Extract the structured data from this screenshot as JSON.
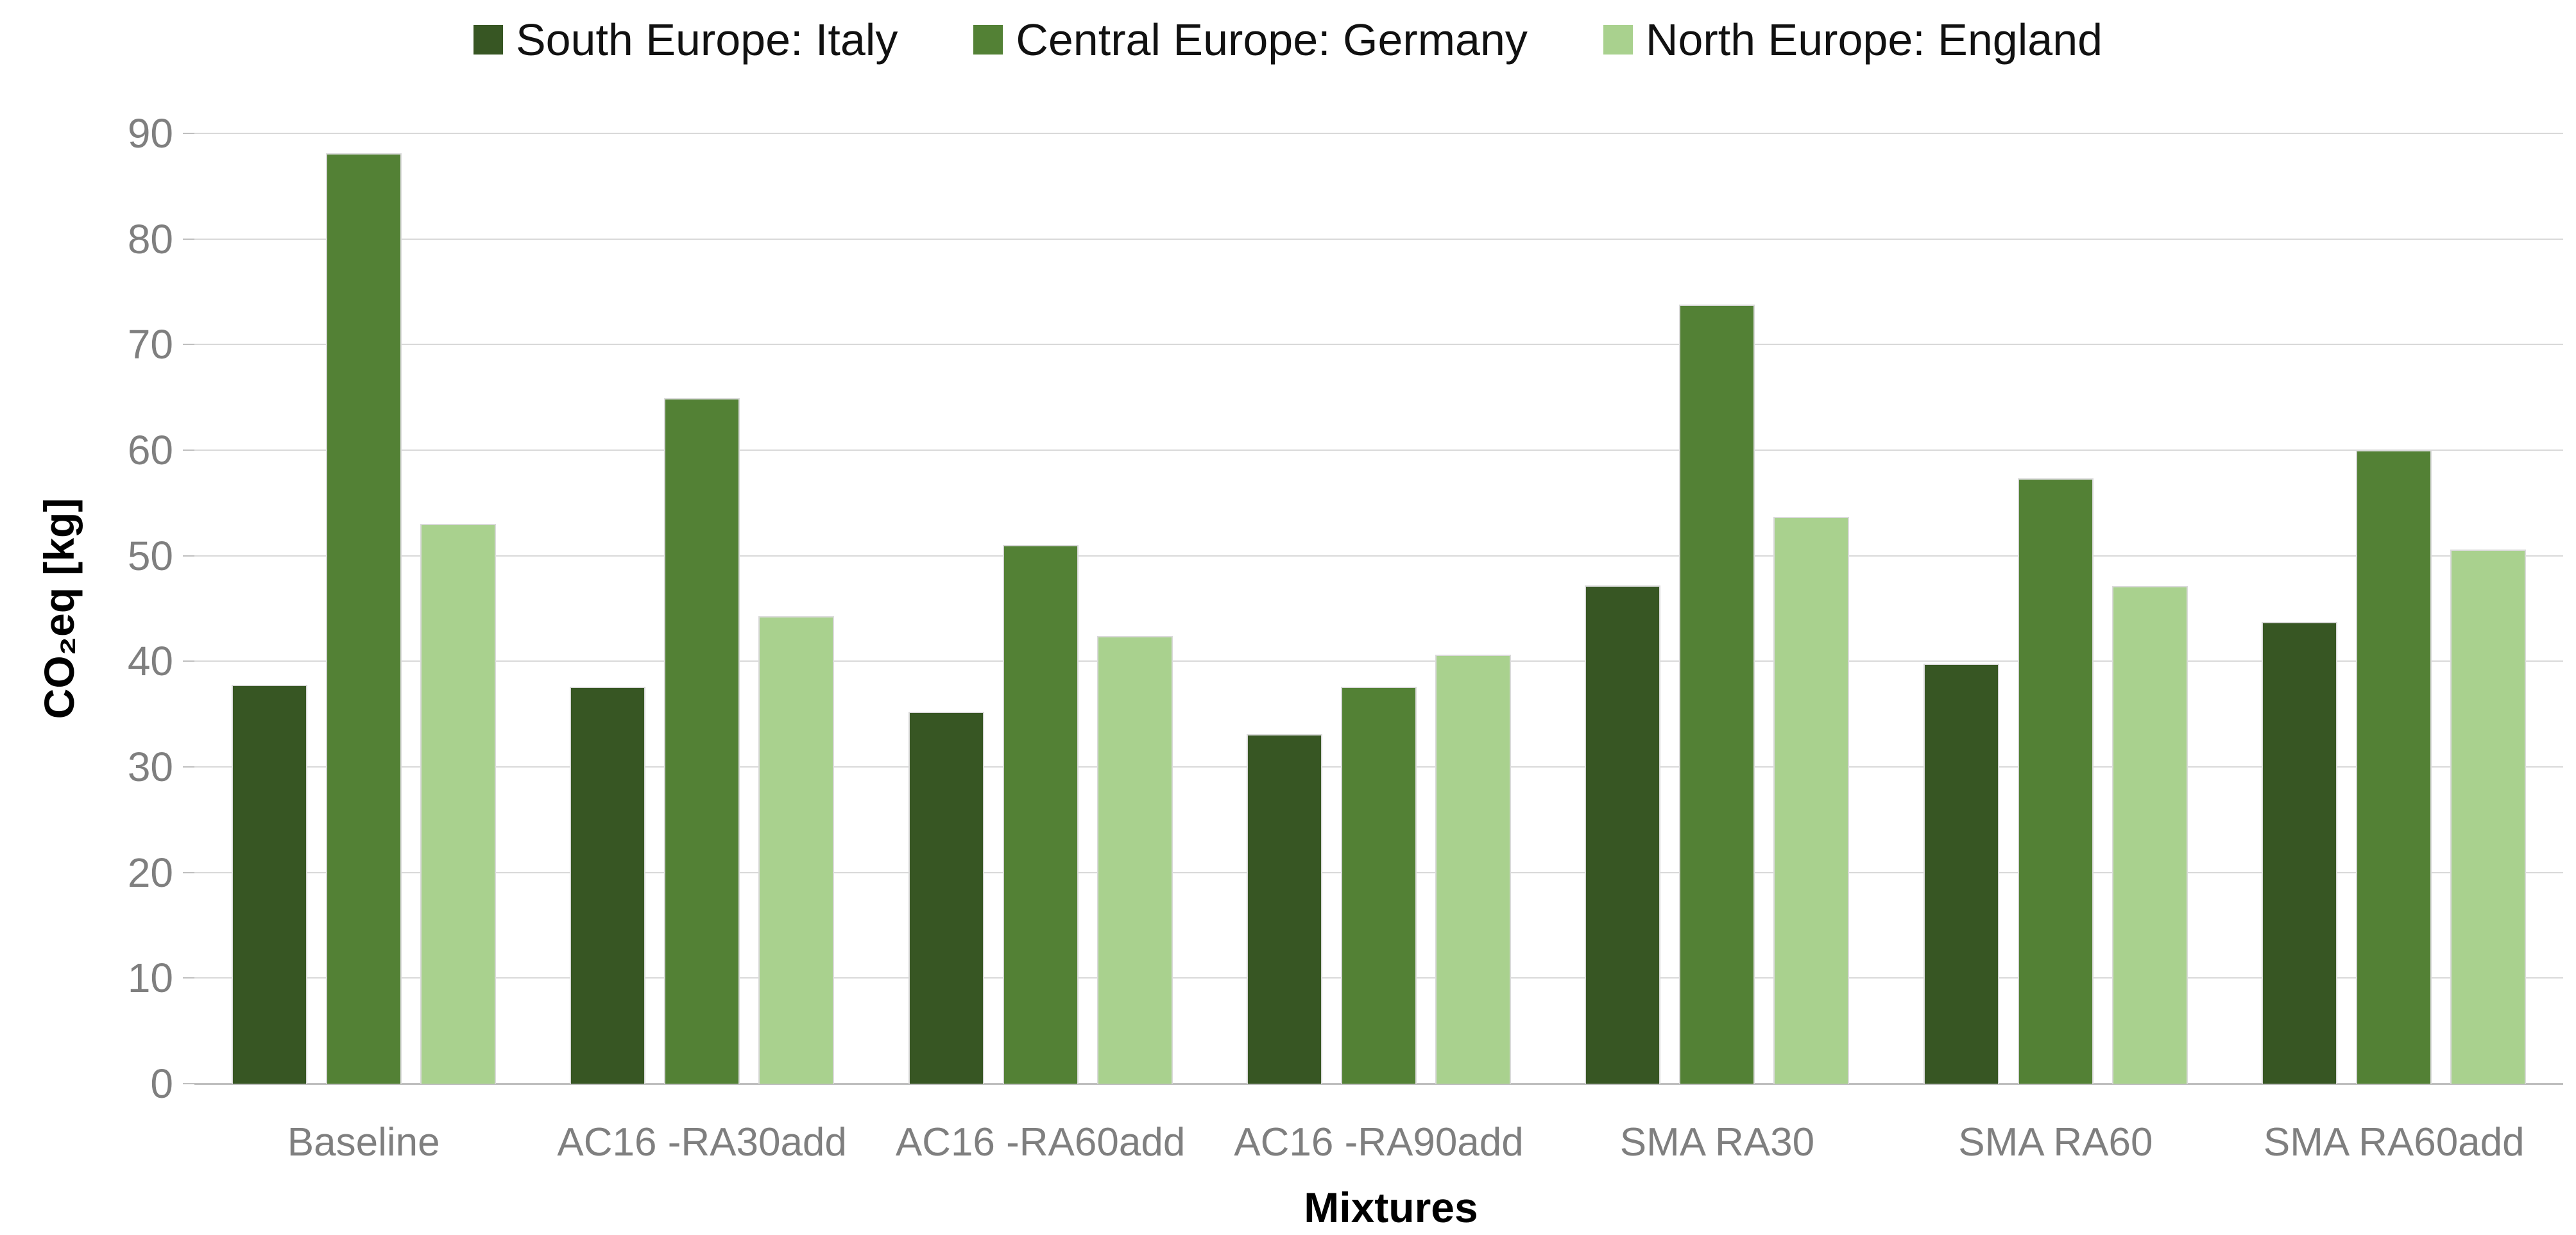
{
  "chart_data": {
    "type": "bar",
    "title": "",
    "legend_position": "top",
    "categories": [
      "Baseline",
      "AC16 -RA30add",
      "AC16 -RA60add",
      "AC16 -RA90add",
      "SMA RA30",
      "SMA RA60",
      "SMA RA60add"
    ],
    "series": [
      {
        "name": "South Europe: Italy",
        "color": "#375623",
        "values": [
          37.8,
          37.6,
          35.2,
          33.1,
          47.2,
          39.8,
          43.7
        ]
      },
      {
        "name": "Central Europe: Germany",
        "color": "#538135",
        "values": [
          88.1,
          64.9,
          51.0,
          37.6,
          73.8,
          57.3,
          60.0
        ]
      },
      {
        "name": "North Europe: England",
        "color": "#A9D18E",
        "values": [
          53.0,
          44.3,
          42.4,
          40.6,
          53.7,
          47.1,
          50.6
        ]
      }
    ],
    "xlabel": "Mixtures",
    "ylabel": "CO₂eq [kg]",
    "ylim": [
      0,
      90
    ],
    "yticks": [
      0,
      10,
      20,
      30,
      40,
      50,
      60,
      70,
      80,
      90
    ],
    "grid": true
  },
  "theme": {
    "background": "#FFFFFF",
    "gridline_color": "#D9D9D9",
    "axis_line_color": "#BFBFBF",
    "tick_label_color": "#7F7F7F",
    "text_color": "#000000",
    "bar_border_color": "#DADADA"
  }
}
